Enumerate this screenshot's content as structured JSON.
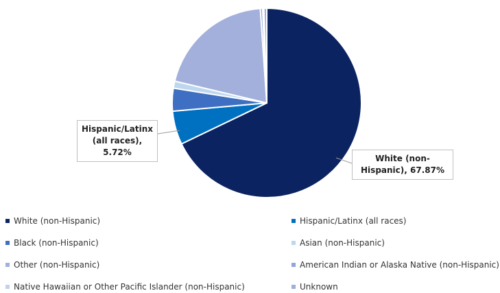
{
  "chart_data": {
    "type": "pie",
    "categories": [
      "White (non-Hispanic)",
      "Hispanic/Latinx (all races)",
      "Black (non-Hispanic)",
      "Asian (non-Hispanic)",
      "Other (non-Hispanic)",
      "American Indian or Alaska Native (non-Hispanic)",
      "Native Hawaiian or Other Pacific Islander (non-Hispanic)",
      "Unknown"
    ],
    "values": [
      67.87,
      5.72,
      3.9,
      1.2,
      20.2,
      0.4,
      0.2,
      0.5
    ],
    "value_labels": [
      "White (non-Hispanic), 67.87%",
      "Hispanic/Latinx (all races), 5.72%",
      null,
      null,
      null,
      null,
      null,
      null
    ],
    "colors": [
      "#0b2461",
      "#0070c0",
      "#3f6fc2",
      "#bdd7ee",
      "#a3b0db",
      "#8ea6d8",
      "#c6d0ea",
      "#9cb0dc"
    ],
    "legend": "bottom"
  }
}
